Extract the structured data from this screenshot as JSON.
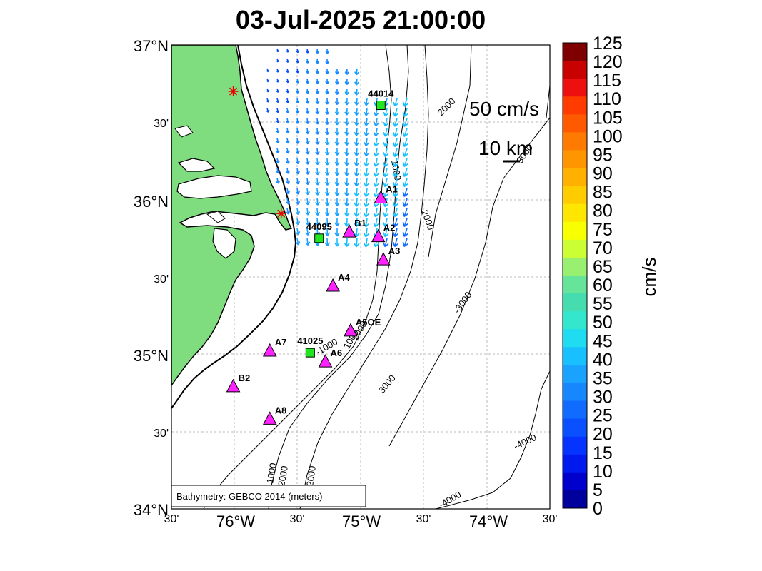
{
  "title": "03-Jul-2025 21:00:00",
  "scale": {
    "speed_label": "50 cm/s",
    "distance_label": "10 km"
  },
  "lat_ticks": [
    "37°N",
    "30'",
    "36°N",
    "30'",
    "35°N",
    "30'",
    "34°N"
  ],
  "lon_ticks": [
    "30'",
    "76°W",
    "30'",
    "75°W",
    "30'",
    "74°W",
    "30'"
  ],
  "colorbar": {
    "unit": "cm/s",
    "labels": [
      "125",
      "120",
      "115",
      "110",
      "105",
      "100",
      "95",
      "90",
      "85",
      "80",
      "75",
      "70",
      "65",
      "60",
      "55",
      "50",
      "45",
      "40",
      "35",
      "30",
      "25",
      "20",
      "15",
      "10",
      "5",
      "0"
    ],
    "colors": [
      "#7f0000",
      "#c80000",
      "#ee1010",
      "#ff3b00",
      "#ff5a00",
      "#ff7a00",
      "#ff9600",
      "#ffb000",
      "#ffcc00",
      "#ffe600",
      "#f7ff00",
      "#ccff33",
      "#99f070",
      "#66e59a",
      "#45ddb0",
      "#33e6cc",
      "#1fdcf0",
      "#19c0ff",
      "#1aa2ff",
      "#1787ff",
      "#106cff",
      "#0a50ff",
      "#0533ff",
      "#0019ee",
      "#0000cc",
      "#00009c"
    ]
  },
  "attribution": "Bathymetry: GEBCO 2014 (meters)",
  "contour_labels": [
    "2000",
    "2000",
    "1000",
    "3000",
    "1000",
    "2000",
    "3000",
    "-3000",
    "-4000",
    "-4000",
    "-1000",
    "1000",
    "2000",
    "2000",
    "3000",
    "1000"
  ],
  "stations": {
    "buoys": [
      {
        "id": "44014",
        "lat": 36.61,
        "lon": -74.84
      },
      {
        "id": "44095",
        "lat": 35.75,
        "lon": -75.33
      },
      {
        "id": "41025",
        "lat": 35.01,
        "lon": -75.4
      }
    ],
    "triangles": [
      {
        "id": "A1",
        "lat": 36.01,
        "lon": -74.84
      },
      {
        "id": "B1",
        "lat": 35.79,
        "lon": -75.09
      },
      {
        "id": "A2",
        "lat": 35.76,
        "lon": -74.86
      },
      {
        "id": "A3",
        "lat": 35.61,
        "lon": -74.82
      },
      {
        "id": "A4",
        "lat": 35.44,
        "lon": -75.22
      },
      {
        "id": "A5OE",
        "lat": 35.15,
        "lon": -75.08
      },
      {
        "id": "A7",
        "lat": 35.02,
        "lon": -75.72
      },
      {
        "id": "A6",
        "lat": 34.95,
        "lon": -75.28
      },
      {
        "id": "B2",
        "lat": 34.79,
        "lon": -76.01
      },
      {
        "id": "A8",
        "lat": 34.58,
        "lon": -75.72
      }
    ],
    "radar_sites": [
      {
        "id": "radar-1",
        "lat": 36.7,
        "lon": -76.01
      },
      {
        "id": "radar-2",
        "lat": 35.91,
        "lon": -75.63
      }
    ]
  },
  "map_extent": {
    "lon_min": -76.5,
    "lon_max": -73.5,
    "lat_min": 34.0,
    "lat_max": 37.0
  }
}
